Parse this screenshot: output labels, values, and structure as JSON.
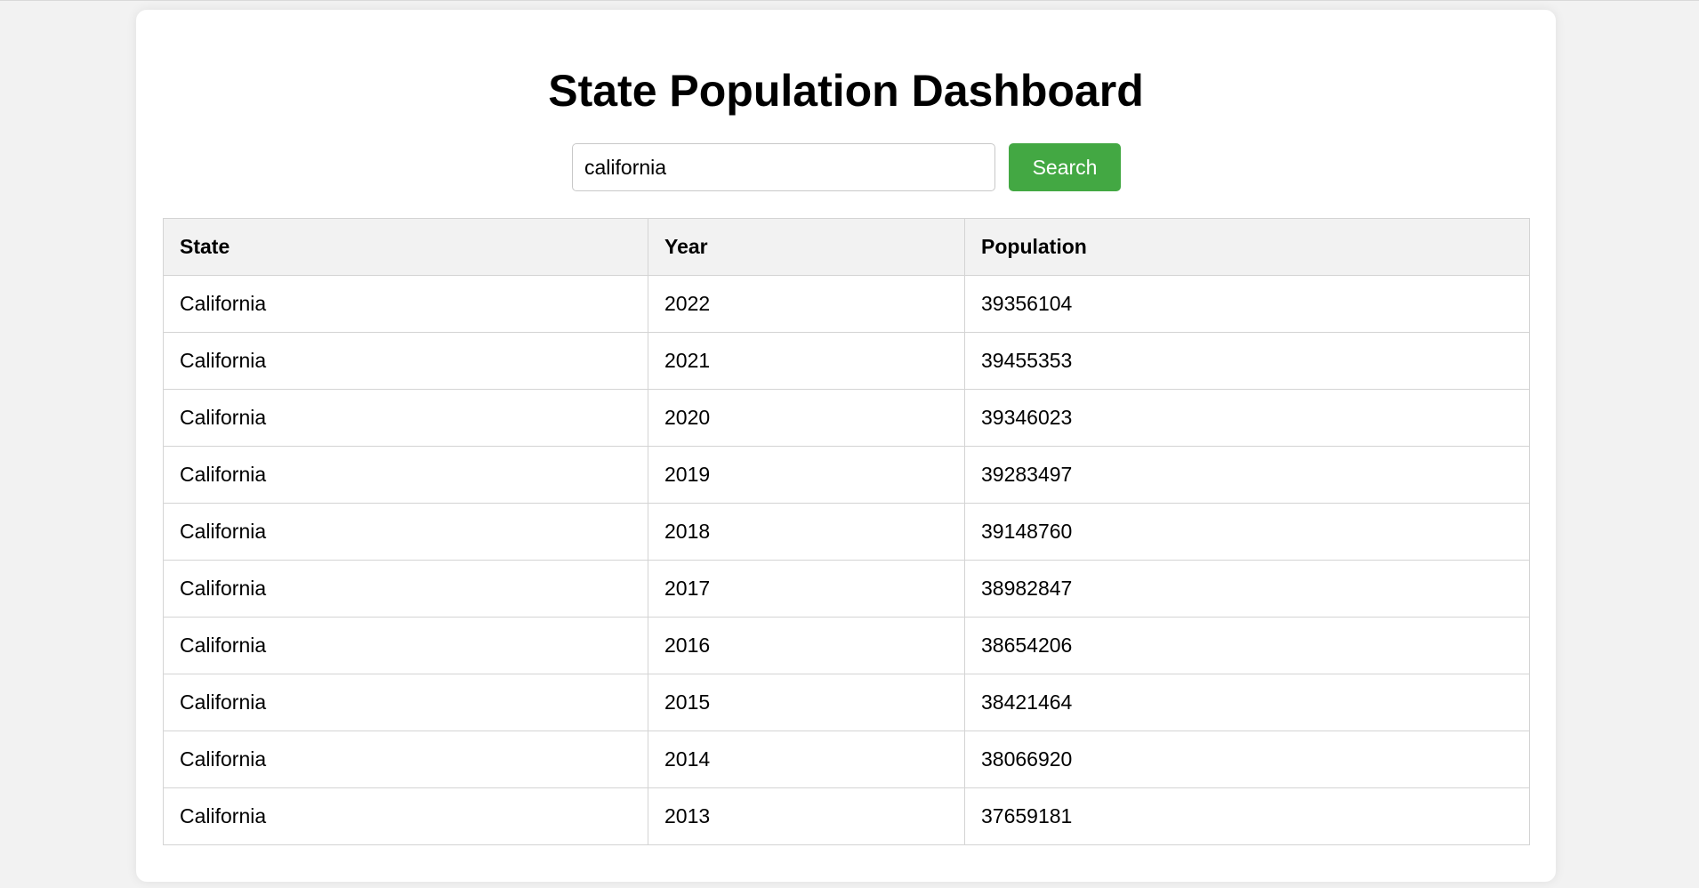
{
  "page": {
    "title": "State Population Dashboard"
  },
  "search": {
    "value": "california",
    "button_label": "Search"
  },
  "colors": {
    "accent": "#43a843",
    "background": "#f2f2f2",
    "card": "#ffffff",
    "header_bg": "#f2f2f2"
  },
  "table": {
    "headers": [
      "State",
      "Year",
      "Population"
    ],
    "rows": [
      [
        "California",
        "2022",
        "39356104"
      ],
      [
        "California",
        "2021",
        "39455353"
      ],
      [
        "California",
        "2020",
        "39346023"
      ],
      [
        "California",
        "2019",
        "39283497"
      ],
      [
        "California",
        "2018",
        "39148760"
      ],
      [
        "California",
        "2017",
        "38982847"
      ],
      [
        "California",
        "2016",
        "38654206"
      ],
      [
        "California",
        "2015",
        "38421464"
      ],
      [
        "California",
        "2014",
        "38066920"
      ],
      [
        "California",
        "2013",
        "37659181"
      ]
    ]
  }
}
